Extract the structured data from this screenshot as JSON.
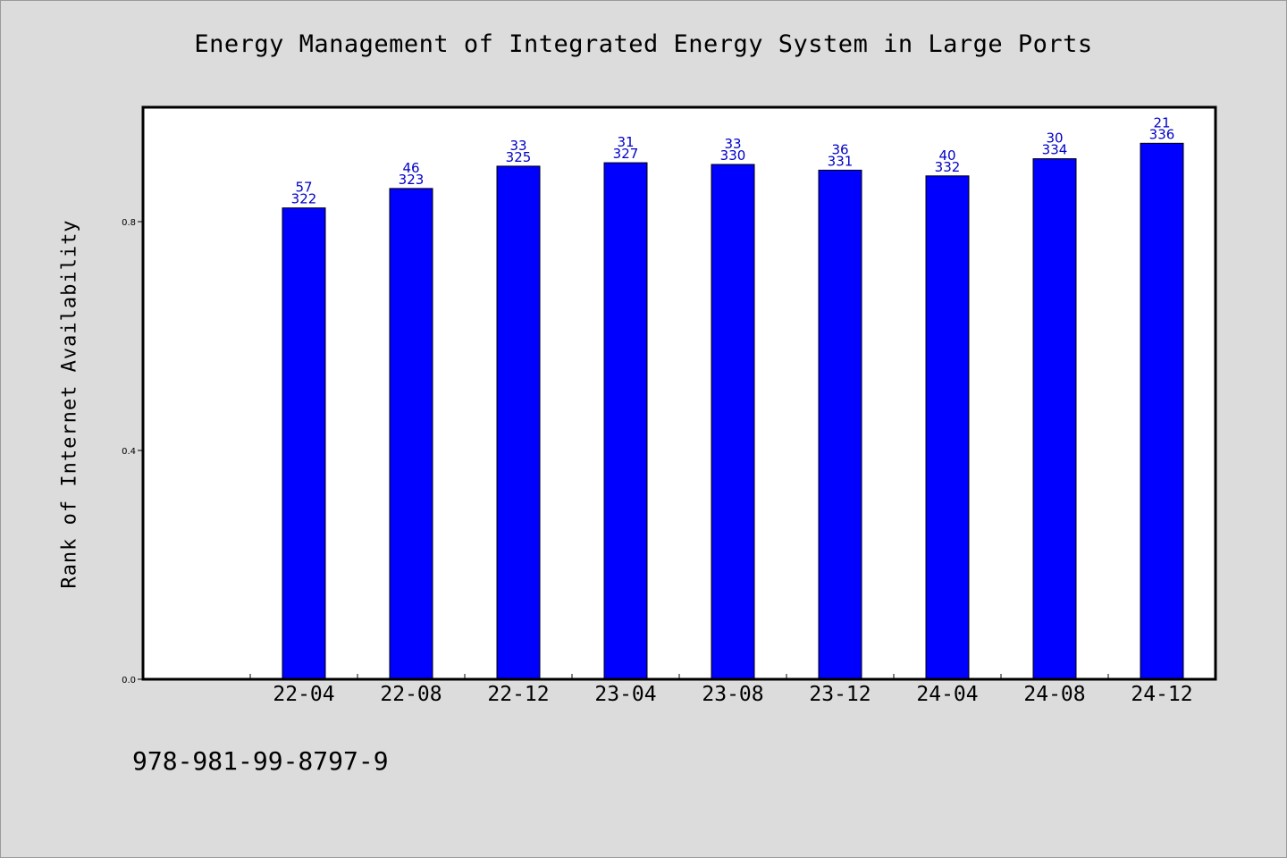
{
  "colors": {
    "background": "#dcdcdc",
    "plot_background": "#ffffff",
    "bar": "#0000ff",
    "data_label": "#0000c8",
    "axis": "#000000"
  },
  "footer": {
    "code": "978-981-99-8797-9"
  },
  "chart_data": {
    "type": "bar",
    "title": "Energy Management of Integrated Energy System in Large Ports",
    "xlabel": "",
    "ylabel": "Rank of Internet Availability",
    "ylim": [
      0,
      1.0
    ],
    "yticks": [
      0.0,
      0.4,
      0.8
    ],
    "ytick_labels": [
      "0.0",
      "0.4",
      "0.8"
    ],
    "grid": false,
    "categories": [
      "22-04",
      "22-08",
      "22-12",
      "23-04",
      "23-08",
      "23-12",
      "24-04",
      "24-08",
      "24-12"
    ],
    "values": [
      0.824,
      0.858,
      0.897,
      0.903,
      0.9,
      0.89,
      0.88,
      0.91,
      0.937
    ],
    "annotations_top": [
      "57",
      "46",
      "33",
      "31",
      "33",
      "36",
      "40",
      "30",
      "21"
    ],
    "annotations_bottom": [
      "322",
      "323",
      "325",
      "327",
      "330",
      "331",
      "332",
      "334",
      "336"
    ]
  }
}
